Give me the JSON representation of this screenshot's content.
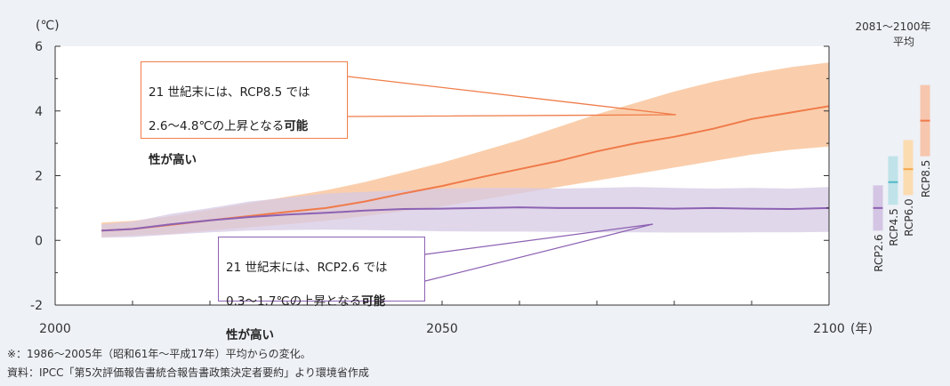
{
  "chart_data": {
    "type": "area",
    "y_unit_label": "(℃)",
    "x_unit_label": "(年)",
    "xlim": [
      2000,
      2100
    ],
    "ylim": [
      -2,
      6
    ],
    "x_ticks": [
      2000,
      2050,
      2100
    ],
    "y_ticks": [
      -2,
      0,
      2,
      4,
      6
    ],
    "grid": false,
    "series": [
      {
        "name": "RCP8.5",
        "color": "#f07a4a",
        "band_color": "#f9c9a3",
        "x": [
          2006,
          2010,
          2015,
          2020,
          2025,
          2030,
          2035,
          2040,
          2045,
          2050,
          2055,
          2060,
          2065,
          2070,
          2075,
          2080,
          2085,
          2090,
          2095,
          2100
        ],
        "mean": [
          0.3,
          0.35,
          0.48,
          0.62,
          0.75,
          0.88,
          1.0,
          1.2,
          1.45,
          1.68,
          1.95,
          2.2,
          2.45,
          2.75,
          3.0,
          3.2,
          3.45,
          3.75,
          3.95,
          4.15
        ],
        "lower": [
          0.1,
          0.15,
          0.2,
          0.3,
          0.4,
          0.5,
          0.6,
          0.75,
          0.9,
          1.05,
          1.25,
          1.45,
          1.65,
          1.85,
          2.05,
          2.25,
          2.45,
          2.65,
          2.8,
          2.9
        ],
        "upper": [
          0.55,
          0.6,
          0.75,
          0.95,
          1.15,
          1.35,
          1.55,
          1.8,
          2.1,
          2.4,
          2.75,
          3.1,
          3.5,
          3.9,
          4.25,
          4.6,
          4.9,
          5.15,
          5.35,
          5.5
        ]
      },
      {
        "name": "RCP2.6",
        "color": "#8d62b3",
        "band_color": "#d6c9e4",
        "x": [
          2006,
          2010,
          2015,
          2020,
          2025,
          2030,
          2035,
          2040,
          2045,
          2050,
          2055,
          2060,
          2065,
          2070,
          2075,
          2080,
          2085,
          2090,
          2095,
          2100
        ],
        "mean": [
          0.3,
          0.35,
          0.5,
          0.62,
          0.72,
          0.8,
          0.85,
          0.92,
          0.97,
          0.98,
          1.0,
          1.02,
          1.0,
          1.0,
          1.0,
          0.98,
          1.0,
          0.98,
          0.97,
          1.0
        ],
        "lower": [
          0.08,
          0.1,
          0.18,
          0.25,
          0.3,
          0.32,
          0.33,
          0.32,
          0.3,
          0.28,
          0.27,
          0.27,
          0.26,
          0.25,
          0.25,
          0.24,
          0.24,
          0.25,
          0.25,
          0.26
        ],
        "upper": [
          0.5,
          0.58,
          0.82,
          1.0,
          1.2,
          1.32,
          1.45,
          1.5,
          1.55,
          1.6,
          1.62,
          1.62,
          1.6,
          1.62,
          1.65,
          1.62,
          1.6,
          1.62,
          1.6,
          1.65
        ]
      }
    ],
    "end_period_title_line1": "2081～2100年",
    "end_period_title_line2": "平均",
    "end_period_bars": [
      {
        "name": "RCP2.6",
        "low": 0.3,
        "high": 1.7,
        "mean": 1.0,
        "color": "#8d62b3",
        "band_color": "#d3c5e3"
      },
      {
        "name": "RCP4.5",
        "low": 1.1,
        "high": 2.6,
        "mean": 1.8,
        "color": "#4fb9c9",
        "band_color": "#bfe3e8"
      },
      {
        "name": "RCP6.0",
        "low": 1.4,
        "high": 3.1,
        "mean": 2.2,
        "color": "#f2a64a",
        "band_color": "#fbdcb1"
      },
      {
        "name": "RCP8.5",
        "low": 2.6,
        "high": 4.8,
        "mean": 3.7,
        "color": "#f07a4a",
        "band_color": "#f7c6ae"
      }
    ]
  },
  "callouts": {
    "rcp85": {
      "line1": "21 世紀末には、RCP8.5 では",
      "line2": "2.6～4.8℃の上昇となる",
      "line2_bold": "可能",
      "line3_bold": "性が高い",
      "border_color": "#ef7d4a"
    },
    "rcp26": {
      "line1": "21 世紀末には、RCP2.6 では",
      "line2": "0.3～1.7℃の上昇となる",
      "line2_bold": "可能",
      "line3_bold": "性が高い",
      "border_color": "#8d62b3"
    }
  },
  "notes": {
    "note1": "※：1986～2005年（昭和61年～平成17年）平均からの変化。",
    "note2": "資料：IPCC「第5次評価報告書統合報告書政策決定者要約」より環境省作成"
  }
}
